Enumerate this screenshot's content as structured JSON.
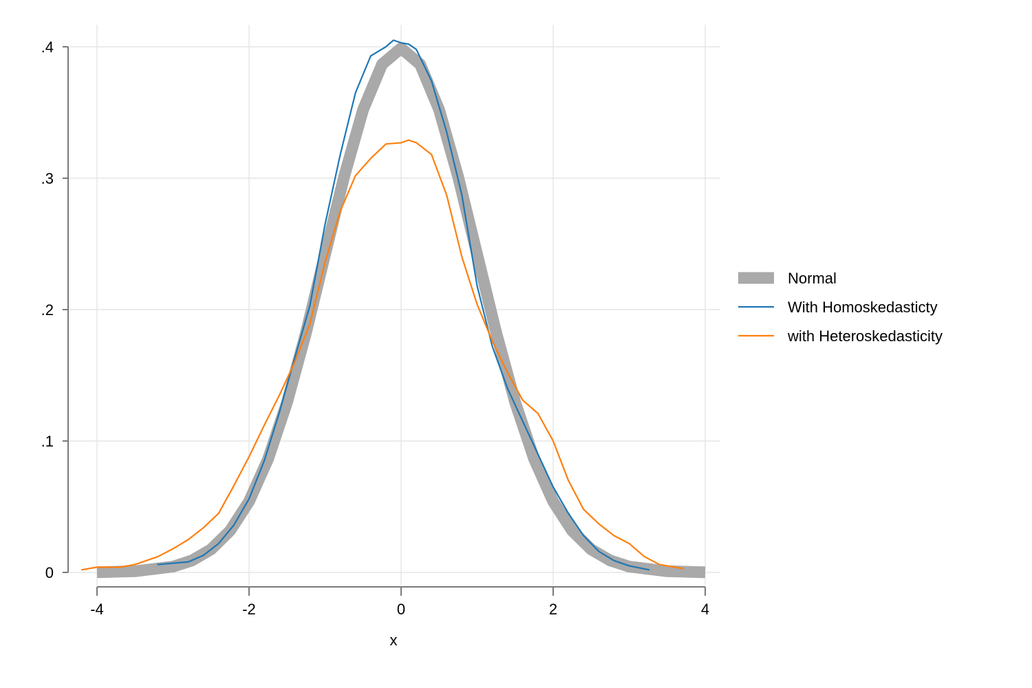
{
  "chart_data": {
    "type": "line",
    "title": "",
    "xlabel": "x",
    "ylabel": "",
    "xlim": [
      -4,
      4
    ],
    "ylim": [
      0,
      0.4
    ],
    "x_ticks": [
      -4,
      -2,
      0,
      2,
      4
    ],
    "x_tick_labels": [
      "-4",
      "-2",
      "0",
      "2",
      "4"
    ],
    "y_ticks": [
      0,
      0.1,
      0.2,
      0.3,
      0.4
    ],
    "y_tick_labels": [
      "0",
      ".1",
      ".2",
      ".3",
      ".4"
    ],
    "grid": true,
    "legend_position": "right",
    "series": [
      {
        "name": "Normal",
        "color": "#a9a9a9",
        "style": "thick",
        "x": [
          -4.0,
          -3.5,
          -3.0,
          -2.75,
          -2.5,
          -2.25,
          -2.0,
          -1.75,
          -1.5,
          -1.25,
          -1.0,
          -0.75,
          -0.5,
          -0.25,
          0.0,
          0.25,
          0.5,
          0.75,
          1.0,
          1.25,
          1.5,
          1.75,
          2.0,
          2.25,
          2.5,
          2.75,
          3.0,
          3.5,
          4.0
        ],
        "y": [
          0.0001,
          0.0009,
          0.0044,
          0.0091,
          0.0175,
          0.0317,
          0.054,
          0.0863,
          0.1295,
          0.1826,
          0.242,
          0.3011,
          0.3521,
          0.3867,
          0.3989,
          0.3867,
          0.3521,
          0.3011,
          0.242,
          0.1826,
          0.1295,
          0.0863,
          0.054,
          0.0317,
          0.0175,
          0.0091,
          0.0044,
          0.0009,
          0.0001
        ]
      },
      {
        "name": "With Homoskedasticty",
        "color": "#1f77b4",
        "style": "thin",
        "x": [
          -3.2,
          -3.0,
          -2.8,
          -2.6,
          -2.4,
          -2.2,
          -2.0,
          -1.8,
          -1.6,
          -1.4,
          -1.2,
          -1.0,
          -0.8,
          -0.6,
          -0.4,
          -0.2,
          -0.1,
          0.0,
          0.1,
          0.2,
          0.4,
          0.6,
          0.8,
          1.0,
          1.2,
          1.4,
          1.6,
          1.8,
          2.0,
          2.2,
          2.4,
          2.6,
          2.8,
          3.0,
          3.26
        ],
        "y": [
          0.006,
          0.007,
          0.008,
          0.013,
          0.022,
          0.036,
          0.056,
          0.085,
          0.122,
          0.163,
          0.203,
          0.265,
          0.318,
          0.365,
          0.393,
          0.4,
          0.405,
          0.403,
          0.402,
          0.398,
          0.374,
          0.335,
          0.287,
          0.218,
          0.172,
          0.14,
          0.115,
          0.09,
          0.065,
          0.045,
          0.028,
          0.016,
          0.009,
          0.005,
          0.002
        ]
      },
      {
        "name": "with Heteroskedasticity",
        "color": "#ff7f0e",
        "style": "thin",
        "x": [
          -4.2,
          -4.0,
          -3.7,
          -3.5,
          -3.2,
          -3.0,
          -2.8,
          -2.6,
          -2.4,
          -2.2,
          -2.0,
          -1.8,
          -1.6,
          -1.4,
          -1.2,
          -1.0,
          -0.8,
          -0.6,
          -0.4,
          -0.2,
          0.0,
          0.1,
          0.2,
          0.4,
          0.6,
          0.8,
          1.0,
          1.2,
          1.4,
          1.6,
          1.8,
          2.0,
          2.2,
          2.4,
          2.6,
          2.8,
          3.0,
          3.2,
          3.4,
          3.7
        ],
        "y": [
          0.002,
          0.004,
          0.004,
          0.006,
          0.012,
          0.018,
          0.025,
          0.034,
          0.045,
          0.066,
          0.088,
          0.112,
          0.135,
          0.16,
          0.189,
          0.236,
          0.275,
          0.302,
          0.315,
          0.326,
          0.327,
          0.329,
          0.327,
          0.318,
          0.287,
          0.24,
          0.204,
          0.176,
          0.152,
          0.131,
          0.121,
          0.1,
          0.07,
          0.048,
          0.037,
          0.028,
          0.022,
          0.012,
          0.006,
          0.003
        ]
      }
    ]
  }
}
